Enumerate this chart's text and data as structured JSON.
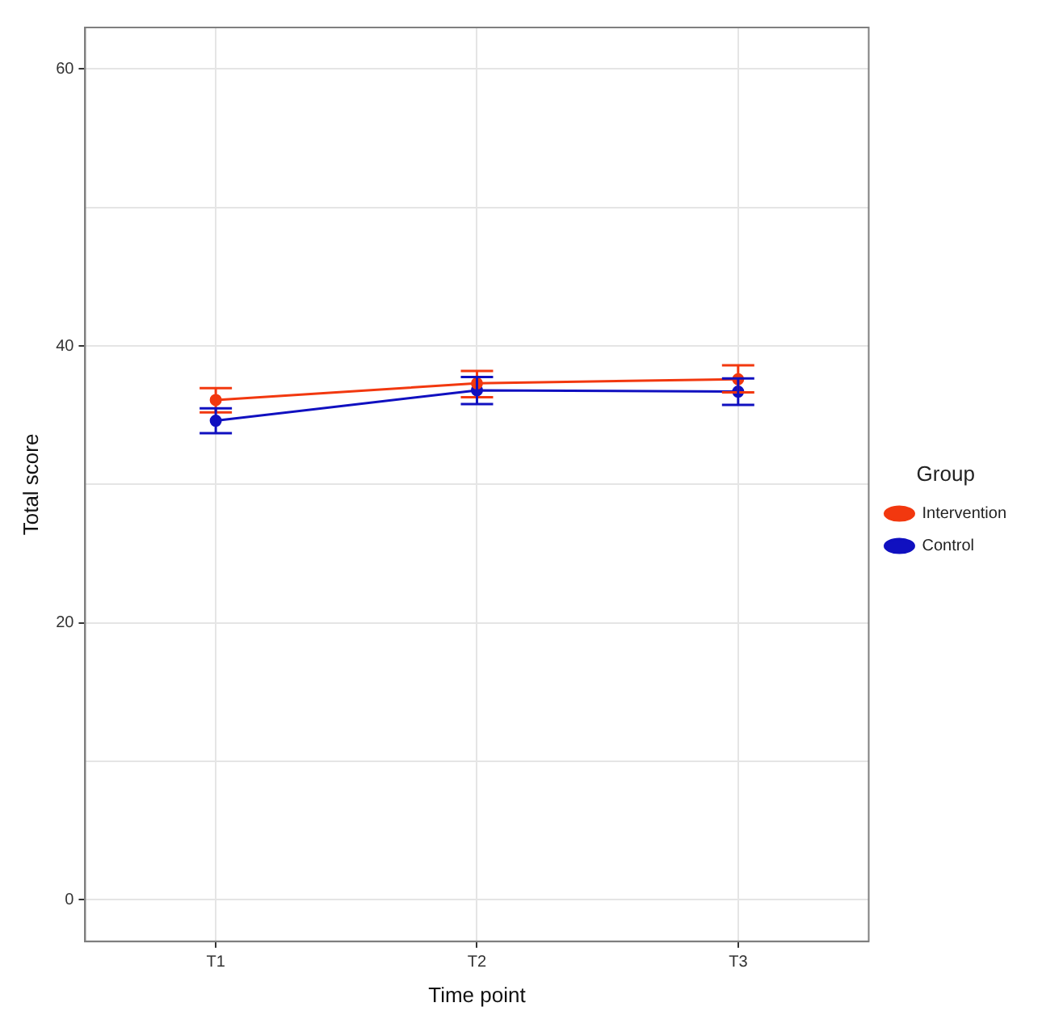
{
  "chart_data": {
    "type": "line",
    "xlabel": "Time point",
    "ylabel": "Total score",
    "legend_title": "Group",
    "categories": [
      "T1",
      "T2",
      "T3"
    ],
    "series": [
      {
        "name": "Intervention",
        "color": "#f2380f",
        "values": [
          36.1,
          37.3,
          37.6
        ],
        "errors": [
          [
            35.2,
            36.95
          ],
          [
            36.3,
            38.2
          ],
          [
            36.65,
            38.6
          ]
        ]
      },
      {
        "name": "Control",
        "color": "#1010c0",
        "values": [
          34.6,
          36.8,
          36.7
        ],
        "errors": [
          [
            33.7,
            35.5
          ],
          [
            35.8,
            37.75
          ],
          [
            35.75,
            37.65
          ]
        ]
      }
    ],
    "ylim": [
      -3,
      63
    ],
    "yticks": [
      0,
      {
        "value": 10,
        "label": null
      },
      20,
      {
        "value": 30,
        "label": null
      },
      40,
      {
        "value": 50,
        "label": null
      },
      60
    ],
    "grid": true,
    "legend": "right",
    "marker": "circle",
    "line_style": "solid"
  }
}
